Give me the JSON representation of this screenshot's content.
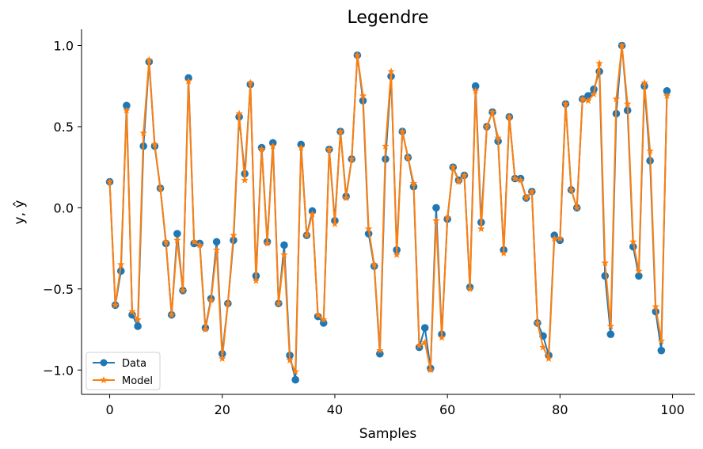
{
  "chart_data": {
    "type": "line",
    "title": "Legendre",
    "xlabel": "Samples",
    "ylabel": "y, ŷ",
    "xlim": [
      -5,
      104
    ],
    "ylim": [
      -1.15,
      1.1
    ],
    "xticks": [
      0,
      20,
      40,
      60,
      80,
      100
    ],
    "xtick_labels": [
      "0",
      "20",
      "40",
      "60",
      "80",
      "100"
    ],
    "yticks": [
      -1.0,
      -0.5,
      0.0,
      0.5,
      1.0
    ],
    "ytick_labels": [
      "−1.0",
      "−0.5",
      "0.0",
      "0.5",
      "1.0"
    ],
    "grid": false,
    "legend_position": "lower-left",
    "colors": {
      "data": "#1f77b4",
      "model": "#ff7f0e"
    },
    "x": [
      0,
      1,
      2,
      3,
      4,
      5,
      6,
      7,
      8,
      9,
      10,
      11,
      12,
      13,
      14,
      15,
      16,
      17,
      18,
      19,
      20,
      21,
      22,
      23,
      24,
      25,
      26,
      27,
      28,
      29,
      30,
      31,
      32,
      33,
      34,
      35,
      36,
      37,
      38,
      39,
      40,
      41,
      42,
      43,
      44,
      45,
      46,
      47,
      48,
      49,
      50,
      51,
      52,
      53,
      54,
      55,
      56,
      57,
      58,
      59,
      60,
      61,
      62,
      63,
      64,
      65,
      66,
      67,
      68,
      69,
      70,
      71,
      72,
      73,
      74,
      75,
      76,
      77,
      78,
      79,
      80,
      81,
      82,
      83,
      84,
      85,
      86,
      87,
      88,
      89,
      90,
      91,
      92,
      93,
      94,
      95,
      96,
      97,
      98,
      99
    ],
    "series": [
      {
        "name": "Data",
        "marker": "circle",
        "values": [
          0.16,
          -0.6,
          -0.39,
          0.63,
          -0.66,
          -0.73,
          0.38,
          0.9,
          0.38,
          0.12,
          -0.22,
          -0.66,
          -0.16,
          -0.51,
          0.8,
          -0.22,
          -0.22,
          -0.74,
          -0.56,
          -0.21,
          -0.9,
          -0.59,
          -0.2,
          0.56,
          0.21,
          0.76,
          -0.42,
          0.37,
          -0.21,
          0.4,
          -0.59,
          -0.23,
          -0.91,
          -1.06,
          0.39,
          -0.17,
          -0.02,
          -0.67,
          -0.71,
          0.36,
          -0.08,
          0.47,
          0.07,
          0.3,
          0.94,
          0.66,
          -0.16,
          -0.36,
          -0.9,
          0.3,
          0.81,
          -0.26,
          0.47,
          0.31,
          0.13,
          -0.86,
          -0.74,
          -0.99,
          0.0,
          -0.78,
          -0.07,
          0.25,
          0.17,
          0.2,
          -0.49,
          0.75,
          -0.09,
          0.5,
          0.59,
          0.41,
          -0.26,
          0.56,
          0.18,
          0.18,
          0.06,
          0.1,
          -0.71,
          -0.79,
          -0.91,
          -0.17,
          -0.2,
          0.64,
          0.11,
          0.0,
          0.67,
          0.69,
          0.73,
          0.84,
          -0.42,
          -0.78,
          0.58,
          1.0,
          0.6,
          -0.24,
          -0.42,
          0.75,
          0.29,
          -0.64,
          -0.88,
          0.72
        ]
      },
      {
        "name": "Model",
        "marker": "star",
        "values": [
          0.16,
          -0.6,
          -0.35,
          0.6,
          -0.64,
          -0.69,
          0.46,
          0.91,
          0.39,
          0.12,
          -0.21,
          -0.66,
          -0.2,
          -0.51,
          0.78,
          -0.21,
          -0.23,
          -0.75,
          -0.57,
          -0.26,
          -0.93,
          -0.59,
          -0.17,
          0.58,
          0.17,
          0.77,
          -0.45,
          0.36,
          -0.22,
          0.38,
          -0.59,
          -0.29,
          -0.94,
          -1.01,
          0.37,
          -0.17,
          -0.04,
          -0.66,
          -0.69,
          0.36,
          -0.1,
          0.47,
          0.06,
          0.3,
          0.94,
          0.69,
          -0.13,
          -0.35,
          -0.88,
          0.38,
          0.84,
          -0.29,
          0.47,
          0.31,
          0.15,
          -0.85,
          -0.83,
          -1.0,
          -0.08,
          -0.8,
          -0.06,
          0.25,
          0.16,
          0.2,
          -0.5,
          0.72,
          -0.13,
          0.5,
          0.59,
          0.43,
          -0.28,
          0.56,
          0.18,
          0.17,
          0.06,
          0.1,
          -0.71,
          -0.86,
          -0.93,
          -0.19,
          -0.19,
          0.64,
          0.11,
          0.0,
          0.67,
          0.66,
          0.7,
          0.89,
          -0.34,
          -0.73,
          0.67,
          1.0,
          0.64,
          -0.21,
          -0.39,
          0.77,
          0.35,
          -0.61,
          -0.82,
          0.69
        ]
      }
    ]
  }
}
